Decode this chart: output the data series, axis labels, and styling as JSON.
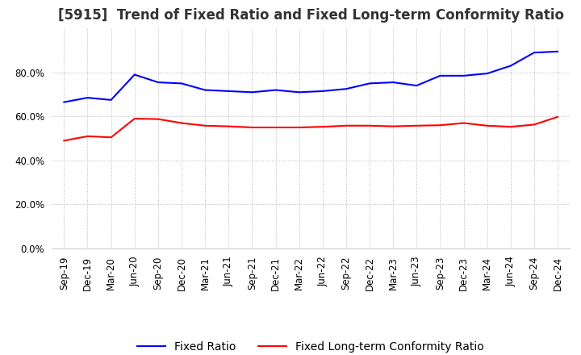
{
  "title": "[5915]  Trend of Fixed Ratio and Fixed Long-term Conformity Ratio",
  "x_labels": [
    "Sep-19",
    "Dec-19",
    "Mar-20",
    "Jun-20",
    "Sep-20",
    "Dec-20",
    "Mar-21",
    "Jun-21",
    "Sep-21",
    "Dec-21",
    "Mar-22",
    "Jun-22",
    "Sep-22",
    "Dec-22",
    "Mar-23",
    "Jun-23",
    "Sep-23",
    "Dec-23",
    "Mar-24",
    "Jun-24",
    "Sep-24",
    "Dec-24"
  ],
  "fixed_ratio": [
    0.665,
    0.685,
    0.675,
    0.79,
    0.755,
    0.75,
    0.72,
    0.715,
    0.71,
    0.72,
    0.71,
    0.715,
    0.725,
    0.75,
    0.755,
    0.74,
    0.785,
    0.785,
    0.795,
    0.83,
    0.89,
    0.895
  ],
  "fixed_lt_ratio": [
    0.49,
    0.51,
    0.505,
    0.59,
    0.588,
    0.57,
    0.558,
    0.555,
    0.55,
    0.55,
    0.55,
    0.553,
    0.558,
    0.558,
    0.555,
    0.558,
    0.56,
    0.57,
    0.558,
    0.553,
    0.563,
    0.598
  ],
  "fixed_ratio_color": "#0000ff",
  "fixed_lt_ratio_color": "#ff0000",
  "ylim": [
    0.0,
    1.0
  ],
  "yticks": [
    0.0,
    0.2,
    0.4,
    0.6,
    0.8
  ],
  "background_color": "#ffffff",
  "grid_color": "#aaaaaa",
  "title_fontsize": 12,
  "legend_fontsize": 10,
  "tick_fontsize": 8.5
}
